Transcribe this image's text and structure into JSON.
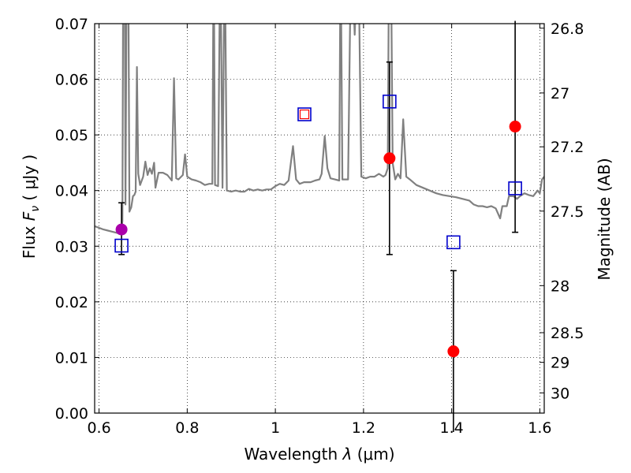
{
  "chart_data": {
    "type": "scatter",
    "xlabel_text": "Wavelength",
    "xlabel_symbol": "λ",
    "xlabel_unit": "(μm)",
    "ylabel_text": "Flux",
    "ylabel_symbol": "F",
    "ylabel_sub": "ν",
    "ylabel_unit": "( μJy )",
    "y2label": "Magnitude (AB)",
    "xlim": [
      0.59,
      1.61
    ],
    "ylim": [
      0.0,
      0.07
    ],
    "xticks": [
      0.6,
      0.8,
      1.0,
      1.2,
      1.4,
      1.6
    ],
    "xtick_labels": [
      "0.6",
      "0.8",
      "1",
      "1.2",
      "1.4",
      "1.6"
    ],
    "yticks": [
      0.0,
      0.01,
      0.02,
      0.03,
      0.04,
      0.05,
      0.06,
      0.07
    ],
    "ytick_labels": [
      "0.00",
      "0.01",
      "0.02",
      "0.03",
      "0.04",
      "0.05",
      "0.06",
      "0.07"
    ],
    "y2ticks": [
      26.8,
      27.0,
      27.2,
      27.5,
      28.0,
      28.5,
      29.0,
      30.0
    ],
    "y2tick_labels": [
      "26.8",
      "27",
      "27.2",
      "27.5",
      "28",
      "28.5",
      "29",
      "30"
    ],
    "grid": true,
    "colors": {
      "spectrum": "#808080",
      "observed": "#ff0000",
      "observed_special": "#aa00aa",
      "model": "#0000cc",
      "model_inner": "#ff0000",
      "errorbar": "#000000"
    },
    "spectrum": [
      [
        0.59,
        0.0336
      ],
      [
        0.6,
        0.0333
      ],
      [
        0.61,
        0.033
      ],
      [
        0.62,
        0.0328
      ],
      [
        0.63,
        0.0326
      ],
      [
        0.64,
        0.0324
      ],
      [
        0.645,
        0.0323
      ],
      [
        0.65,
        0.0323
      ],
      [
        0.653,
        0.0345
      ],
      [
        0.655,
        0.085
      ],
      [
        0.658,
        0.085
      ],
      [
        0.66,
        0.0375
      ],
      [
        0.663,
        0.085
      ],
      [
        0.666,
        0.085
      ],
      [
        0.669,
        0.0362
      ],
      [
        0.673,
        0.037
      ],
      [
        0.677,
        0.039
      ],
      [
        0.68,
        0.0392
      ],
      [
        0.683,
        0.0398
      ],
      [
        0.686,
        0.0622
      ],
      [
        0.689,
        0.043
      ],
      [
        0.693,
        0.041
      ],
      [
        0.7,
        0.0425
      ],
      [
        0.705,
        0.0452
      ],
      [
        0.71,
        0.0428
      ],
      [
        0.715,
        0.044
      ],
      [
        0.72,
        0.043
      ],
      [
        0.725,
        0.045
      ],
      [
        0.728,
        0.0405
      ],
      [
        0.735,
        0.0432
      ],
      [
        0.745,
        0.0432
      ],
      [
        0.755,
        0.0428
      ],
      [
        0.765,
        0.0418
      ],
      [
        0.77,
        0.0602
      ],
      [
        0.775,
        0.0422
      ],
      [
        0.78,
        0.042
      ],
      [
        0.79,
        0.0428
      ],
      [
        0.795,
        0.0465
      ],
      [
        0.8,
        0.0425
      ],
      [
        0.81,
        0.042
      ],
      [
        0.82,
        0.0418
      ],
      [
        0.83,
        0.0415
      ],
      [
        0.84,
        0.041
      ],
      [
        0.85,
        0.0412
      ],
      [
        0.857,
        0.0412
      ],
      [
        0.86,
        0.085
      ],
      [
        0.863,
        0.041
      ],
      [
        0.87,
        0.0408
      ],
      [
        0.875,
        0.085
      ],
      [
        0.88,
        0.0405
      ],
      [
        0.885,
        0.085
      ],
      [
        0.89,
        0.04
      ],
      [
        0.9,
        0.0398
      ],
      [
        0.91,
        0.04
      ],
      [
        0.92,
        0.0398
      ],
      [
        0.93,
        0.0398
      ],
      [
        0.94,
        0.0403
      ],
      [
        0.95,
        0.04
      ],
      [
        0.96,
        0.0402
      ],
      [
        0.97,
        0.04
      ],
      [
        0.98,
        0.0402
      ],
      [
        0.99,
        0.0402
      ],
      [
        1.0,
        0.0408
      ],
      [
        1.01,
        0.0412
      ],
      [
        1.02,
        0.041
      ],
      [
        1.03,
        0.0418
      ],
      [
        1.04,
        0.048
      ],
      [
        1.047,
        0.042
      ],
      [
        1.055,
        0.0412
      ],
      [
        1.065,
        0.0415
      ],
      [
        1.08,
        0.0415
      ],
      [
        1.09,
        0.0418
      ],
      [
        1.1,
        0.042
      ],
      [
        1.105,
        0.043
      ],
      [
        1.112,
        0.0498
      ],
      [
        1.118,
        0.044
      ],
      [
        1.125,
        0.0422
      ],
      [
        1.135,
        0.042
      ],
      [
        1.145,
        0.0418
      ],
      [
        1.148,
        0.085
      ],
      [
        1.152,
        0.042
      ],
      [
        1.165,
        0.042
      ],
      [
        1.172,
        0.085
      ],
      [
        1.18,
        0.068
      ],
      [
        1.188,
        0.085
      ],
      [
        1.195,
        0.0425
      ],
      [
        1.205,
        0.0422
      ],
      [
        1.215,
        0.0425
      ],
      [
        1.225,
        0.0425
      ],
      [
        1.235,
        0.043
      ],
      [
        1.245,
        0.0425
      ],
      [
        1.25,
        0.0428
      ],
      [
        1.255,
        0.044
      ],
      [
        1.258,
        0.085
      ],
      [
        1.262,
        0.085
      ],
      [
        1.266,
        0.045
      ],
      [
        1.272,
        0.042
      ],
      [
        1.278,
        0.043
      ],
      [
        1.284,
        0.0422
      ],
      [
        1.29,
        0.0528
      ],
      [
        1.297,
        0.0425
      ],
      [
        1.305,
        0.042
      ],
      [
        1.32,
        0.041
      ],
      [
        1.335,
        0.0405
      ],
      [
        1.35,
        0.04
      ],
      [
        1.365,
        0.0395
      ],
      [
        1.38,
        0.0392
      ],
      [
        1.395,
        0.039
      ],
      [
        1.41,
        0.0388
      ],
      [
        1.425,
        0.0385
      ],
      [
        1.44,
        0.0382
      ],
      [
        1.45,
        0.0375
      ],
      [
        1.46,
        0.0372
      ],
      [
        1.47,
        0.0372
      ],
      [
        1.48,
        0.037
      ],
      [
        1.49,
        0.0372
      ],
      [
        1.5,
        0.0368
      ],
      [
        1.51,
        0.035
      ],
      [
        1.515,
        0.0372
      ],
      [
        1.525,
        0.0372
      ],
      [
        1.53,
        0.039
      ],
      [
        1.54,
        0.039
      ],
      [
        1.548,
        0.0385
      ],
      [
        1.555,
        0.039
      ],
      [
        1.565,
        0.0395
      ],
      [
        1.575,
        0.0392
      ],
      [
        1.585,
        0.039
      ],
      [
        1.595,
        0.04
      ],
      [
        1.6,
        0.0395
      ],
      [
        1.605,
        0.042
      ],
      [
        1.61,
        0.0425
      ]
    ],
    "observed": [
      {
        "x": 0.651,
        "y": 0.033,
        "err": [
          0.0045,
          0.0048
        ],
        "special": true
      },
      {
        "x": 1.259,
        "y": 0.0458,
        "err": [
          0.0173,
          0.0173
        ]
      },
      {
        "x": 1.404,
        "y": 0.0111,
        "err": [
          0.0145,
          0.0145
        ]
      },
      {
        "x": 1.544,
        "y": 0.0515,
        "err": [
          0.019,
          0.019
        ]
      }
    ],
    "model": [
      {
        "x": 0.651,
        "y": 0.0301
      },
      {
        "x": 1.066,
        "y": 0.0537,
        "inner": true
      },
      {
        "x": 1.259,
        "y": 0.056
      },
      {
        "x": 1.404,
        "y": 0.0307
      },
      {
        "x": 1.544,
        "y": 0.0404
      }
    ]
  }
}
